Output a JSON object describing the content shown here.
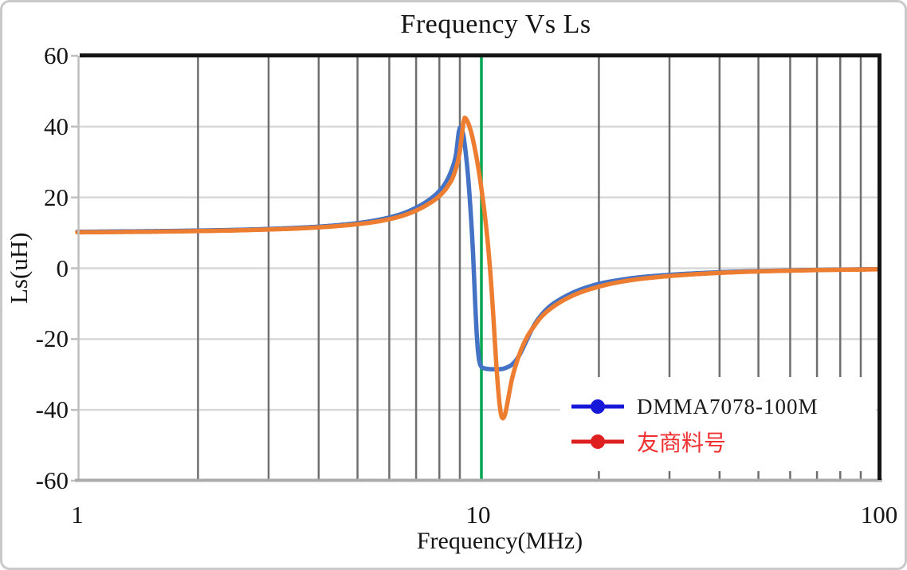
{
  "title": "Frequency Vs Ls",
  "axes": {
    "x_label": "Frequency(MHz)",
    "y_label": "Ls(uH)",
    "x_ticks": [
      "1",
      "10",
      "100"
    ],
    "y_ticks": [
      "60",
      "40",
      "20",
      "0",
      "-20",
      "-40",
      "-60"
    ]
  },
  "legend": [
    {
      "label": "DMMA7078-100M",
      "marker_color": "#1717d9",
      "text_color": "#1a1a1a"
    },
    {
      "label": "友商料号",
      "marker_color": "#de2020",
      "text_color": "#f03030"
    }
  ],
  "colors": {
    "series_blue": "#4472c4",
    "series_orange": "#ed7d31",
    "vline_green": "#00a550",
    "grid_vertical": "#6f6f6f",
    "grid_horizontal": "#d8d8d8",
    "axis_left": "#bfbfbf",
    "axis_bottom": "#ababab",
    "plot_border": "#151515"
  },
  "chart_data": {
    "type": "line",
    "title": "Frequency Vs Ls",
    "xlabel": "Frequency(MHz)",
    "ylabel": "Ls(uH)",
    "x_axis": {
      "scale": "log",
      "min": 1,
      "max": 100,
      "minor_gridlines": [
        2,
        3,
        4,
        5,
        6,
        7,
        8,
        9,
        20,
        30,
        40,
        50,
        60,
        70,
        80,
        90
      ]
    },
    "y_axis": {
      "min": -60,
      "max": 60,
      "gridline_step": 20
    },
    "annotations": [
      {
        "type": "vline",
        "x": 10
      }
    ],
    "legend_position": "inside-bottom-right",
    "series": [
      {
        "name": "DMMA7078-100M",
        "points": [
          [
            1,
            10.3
          ],
          [
            1.3,
            10.4
          ],
          [
            1.6,
            10.5
          ],
          [
            2,
            10.65
          ],
          [
            2.5,
            10.85
          ],
          [
            3,
            11.1
          ],
          [
            3.5,
            11.4
          ],
          [
            4,
            11.75
          ],
          [
            4.5,
            12.2
          ],
          [
            5,
            12.75
          ],
          [
            5.5,
            13.45
          ],
          [
            6,
            14.35
          ],
          [
            6.5,
            15.5
          ],
          [
            7,
            17.1
          ],
          [
            7.5,
            19.1
          ],
          [
            8,
            21.8
          ],
          [
            8.3,
            24.2
          ],
          [
            8.6,
            28
          ],
          [
            8.8,
            32
          ],
          [
            9.0,
            39.7
          ],
          [
            9.15,
            38.5
          ],
          [
            9.3,
            33
          ],
          [
            9.45,
            25
          ],
          [
            9.6,
            14
          ],
          [
            9.72,
            3
          ],
          [
            9.82,
            -9
          ],
          [
            9.92,
            -19
          ],
          [
            10.02,
            -25
          ],
          [
            10.15,
            -27.6
          ],
          [
            10.4,
            -28.3
          ],
          [
            10.8,
            -28.5
          ],
          [
            11.3,
            -28.5
          ],
          [
            11.8,
            -28
          ],
          [
            12.2,
            -27
          ],
          [
            12.6,
            -25
          ],
          [
            13,
            -22
          ],
          [
            13.4,
            -18.8
          ],
          [
            13.8,
            -16
          ],
          [
            14.3,
            -13.5
          ],
          [
            15,
            -11
          ],
          [
            16,
            -8.8
          ],
          [
            17,
            -7.2
          ],
          [
            18,
            -6
          ],
          [
            20,
            -4.4
          ],
          [
            22,
            -3.5
          ],
          [
            25,
            -2.6
          ],
          [
            28,
            -2.1
          ],
          [
            32,
            -1.65
          ],
          [
            37,
            -1.3
          ],
          [
            43,
            -1.0
          ],
          [
            50,
            -0.8
          ],
          [
            60,
            -0.6
          ],
          [
            72,
            -0.45
          ],
          [
            85,
            -0.35
          ],
          [
            100,
            -0.27
          ]
        ]
      },
      {
        "name": "友商料号",
        "points": [
          [
            1,
            10.15
          ],
          [
            1.3,
            10.25
          ],
          [
            1.6,
            10.35
          ],
          [
            2,
            10.5
          ],
          [
            2.5,
            10.7
          ],
          [
            3,
            10.95
          ],
          [
            3.5,
            11.2
          ],
          [
            4,
            11.55
          ],
          [
            4.5,
            11.95
          ],
          [
            5,
            12.45
          ],
          [
            5.5,
            13.05
          ],
          [
            6,
            13.85
          ],
          [
            6.5,
            14.9
          ],
          [
            7,
            16.3
          ],
          [
            7.5,
            18.1
          ],
          [
            8,
            20.4
          ],
          [
            8.4,
            23.2
          ],
          [
            8.7,
            26.5
          ],
          [
            9.0,
            33
          ],
          [
            9.1,
            37.5
          ],
          [
            9.25,
            42.5
          ],
          [
            9.4,
            41.5
          ],
          [
            9.6,
            38.5
          ],
          [
            9.8,
            34
          ],
          [
            10.0,
            28.5
          ],
          [
            10.2,
            22
          ],
          [
            10.4,
            14.5
          ],
          [
            10.6,
            5.5
          ],
          [
            10.75,
            -3
          ],
          [
            10.9,
            -13
          ],
          [
            11.05,
            -24
          ],
          [
            11.2,
            -33.5
          ],
          [
            11.35,
            -40
          ],
          [
            11.5,
            -42.4
          ],
          [
            11.65,
            -41.5
          ],
          [
            11.85,
            -37.5
          ],
          [
            12.1,
            -32
          ],
          [
            12.4,
            -27.5
          ],
          [
            12.8,
            -23
          ],
          [
            13.3,
            -19
          ],
          [
            13.8,
            -16.3
          ],
          [
            14.3,
            -14
          ],
          [
            15,
            -11.8
          ],
          [
            16,
            -9.6
          ],
          [
            17,
            -8
          ],
          [
            18,
            -6.8
          ],
          [
            20,
            -5.2
          ],
          [
            22,
            -4.1
          ],
          [
            25,
            -3.1
          ],
          [
            28,
            -2.5
          ],
          [
            32,
            -1.95
          ],
          [
            37,
            -1.5
          ],
          [
            43,
            -1.15
          ],
          [
            50,
            -0.9
          ],
          [
            60,
            -0.68
          ],
          [
            72,
            -0.5
          ],
          [
            85,
            -0.4
          ],
          [
            100,
            -0.3
          ]
        ]
      }
    ]
  }
}
